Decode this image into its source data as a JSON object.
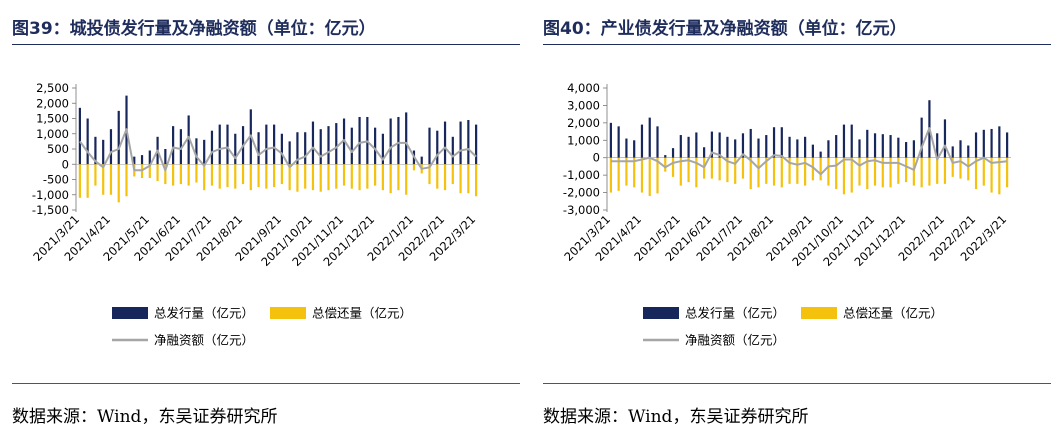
{
  "colors": {
    "issue": "#17275c",
    "repay": "#f4c20d",
    "net": "#a6a6a6",
    "title": "#1f2d5c"
  },
  "panels": [
    {
      "title": "图39：城投债发行量及净融资额（单位：亿元）",
      "source": "数据来源：Wind，东吴证券研究所",
      "chart_data": {
        "type": "bar",
        "yticks": [
          -1500,
          -1000,
          -500,
          0,
          500,
          1000,
          1500,
          2000,
          2500
        ],
        "ytick_labels": [
          "-1,500",
          "-1,000",
          "-500",
          "0",
          "500",
          "1,000",
          "1,500",
          "2,000",
          "2,500"
        ],
        "ylim": [
          -1500,
          2500
        ],
        "xtick_labels": [
          "2021/3/21",
          "2021/4/21",
          "2021/5/21",
          "2021/6/21",
          "2021/7/21",
          "2021/8/21",
          "2021/9/21",
          "2021/10/21",
          "2021/11/21",
          "2021/12/21",
          "2022/1/21",
          "2022/2/21",
          "2022/3/21"
        ],
        "legend": [
          "总发行量（亿元）",
          "总偿还量（亿元）",
          "净融资额（亿元）"
        ],
        "series": [
          {
            "name": "总发行量（亿元）",
            "kind": "bar",
            "values": [
              1850,
              1500,
              900,
              800,
              1150,
              1750,
              2250,
              250,
              300,
              450,
              900,
              500,
              1250,
              1150,
              1600,
              850,
              800,
              1100,
              1300,
              1300,
              1000,
              1250,
              1800,
              1050,
              1300,
              1300,
              1000,
              750,
              1050,
              1050,
              1400,
              1150,
              1250,
              1350,
              1500,
              1200,
              1550,
              1550,
              1200,
              1000,
              1500,
              1550,
              1700,
              450,
              250,
              1200,
              1100,
              1400,
              900,
              1400,
              1450,
              1300
            ]
          },
          {
            "name": "总偿还量（亿元）",
            "kind": "bar",
            "values": [
              -1100,
              -1100,
              -700,
              -1000,
              -1000,
              -1250,
              -1050,
              -400,
              -450,
              -450,
              -550,
              -650,
              -700,
              -650,
              -700,
              -600,
              -850,
              -700,
              -800,
              -750,
              -800,
              -650,
              -850,
              -750,
              -800,
              -750,
              -650,
              -850,
              -900,
              -800,
              -850,
              -900,
              -850,
              -800,
              -700,
              -800,
              -850,
              -800,
              -700,
              -850,
              -950,
              -850,
              -1000,
              -200,
              -300,
              -650,
              -800,
              -850,
              -650,
              -950,
              -950,
              -1050
            ]
          },
          {
            "name": "净融资额（亿元）",
            "kind": "line",
            "values": [
              750,
              400,
              100,
              -100,
              400,
              500,
              1150,
              -200,
              -200,
              -50,
              450,
              -200,
              550,
              500,
              900,
              250,
              -50,
              400,
              500,
              550,
              200,
              600,
              950,
              300,
              500,
              550,
              350,
              -100,
              150,
              250,
              550,
              250,
              400,
              550,
              800,
              400,
              700,
              750,
              500,
              150,
              550,
              700,
              700,
              250,
              -150,
              -100,
              300,
              550,
              250,
              450,
              500,
              250
            ]
          }
        ]
      }
    },
    {
      "title": "图40：产业债发行量及净融资额（单位：亿元）",
      "source": "数据来源：Wind，东吴证券研究所",
      "chart_data": {
        "type": "bar",
        "yticks": [
          -3000,
          -2000,
          -1000,
          0,
          1000,
          2000,
          3000,
          4000
        ],
        "ytick_labels": [
          "-3,000",
          "-2,000",
          "-1,000",
          "0",
          "1,000",
          "2,000",
          "3,000",
          "4,000"
        ],
        "ylim": [
          -3000,
          4000
        ],
        "xtick_labels": [
          "2021/3/21",
          "2021/4/21",
          "2021/5/21",
          "2021/6/21",
          "2021/7/21",
          "2021/8/21",
          "2021/9/21",
          "2021/10/21",
          "2021/11/21",
          "2021/12/21",
          "2022/1/21",
          "2022/2/21",
          "2022/3/21"
        ],
        "legend": [
          "总发行量（亿元）",
          "总偿还量（亿元）",
          "净融资额（亿元）"
        ],
        "series": [
          {
            "name": "总发行量（亿元）",
            "kind": "bar",
            "values": [
              2000,
              1800,
              1100,
              1000,
              1900,
              2300,
              1800,
              150,
              550,
              1300,
              1200,
              1450,
              600,
              1500,
              1450,
              1200,
              1050,
              1400,
              1650,
              1100,
              1300,
              1750,
              1750,
              1200,
              1050,
              1200,
              750,
              350,
              1000,
              1300,
              1900,
              1900,
              1050,
              1600,
              1400,
              1350,
              1300,
              1150,
              900,
              1000,
              2300,
              3300,
              1400,
              2200,
              650,
              1000,
              700,
              1450,
              1600,
              1650,
              1800,
              1450
            ]
          },
          {
            "name": "总偿还量（亿元）",
            "kind": "bar",
            "values": [
              -2000,
              -1900,
              -1600,
              -1700,
              -2000,
              -2200,
              -2050,
              -800,
              -1100,
              -1600,
              -1400,
              -1700,
              -1200,
              -1200,
              -1300,
              -1400,
              -1500,
              -1200,
              -1800,
              -1700,
              -1500,
              -1600,
              -1700,
              -1500,
              -1500,
              -1600,
              -1300,
              -1300,
              -1600,
              -1800,
              -2100,
              -2000,
              -1600,
              -1800,
              -1600,
              -1700,
              -1700,
              -1500,
              -1400,
              -1600,
              -1700,
              -1600,
              -1500,
              -1500,
              -1100,
              -1200,
              -1300,
              -1800,
              -1600,
              -2000,
              -2100,
              -1700
            ]
          },
          {
            "name": "净融资额（亿元）",
            "kind": "line",
            "values": [
              -200,
              -200,
              -200,
              -200,
              -100,
              0,
              -200,
              -550,
              -300,
              -200,
              -150,
              -300,
              -550,
              300,
              150,
              -200,
              -350,
              200,
              -150,
              -600,
              -200,
              150,
              100,
              -300,
              -400,
              -300,
              -550,
              -950,
              -500,
              -450,
              -100,
              -100,
              -450,
              -200,
              -150,
              -300,
              -300,
              -300,
              -500,
              -700,
              600,
              1700,
              -100,
              700,
              -300,
              -200,
              -500,
              -200,
              0,
              -300,
              -250,
              -200
            ]
          }
        ]
      }
    }
  ]
}
